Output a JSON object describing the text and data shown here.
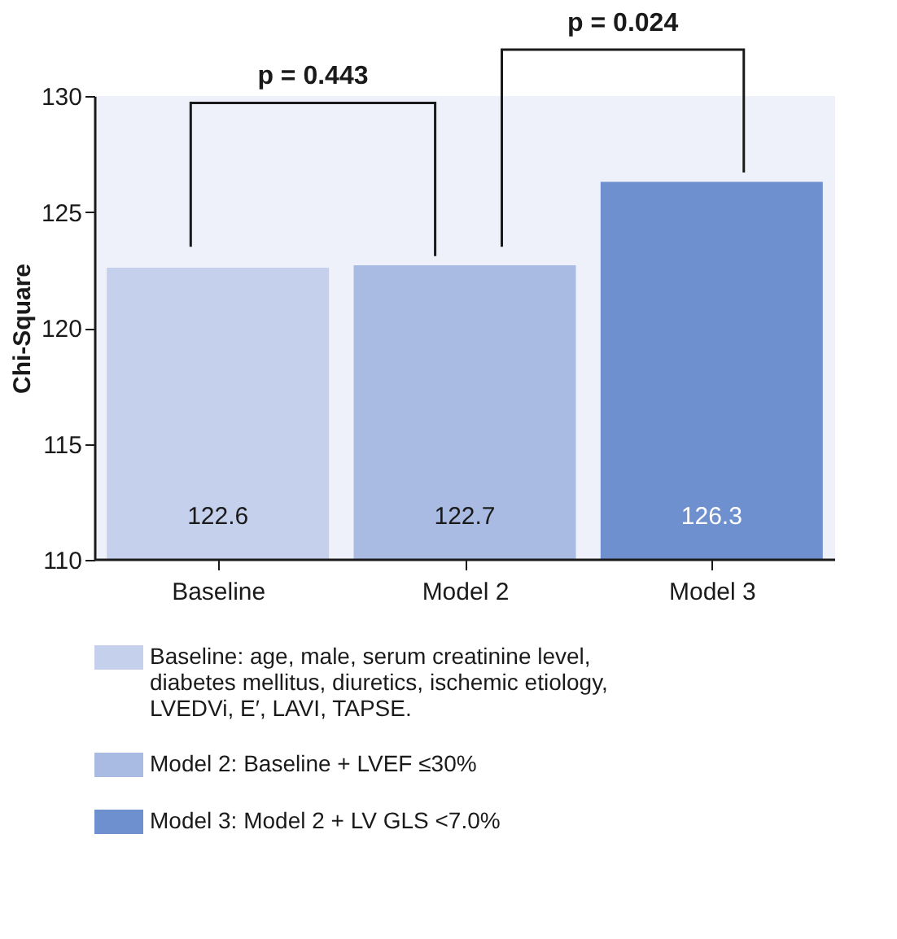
{
  "chart_data": {
    "type": "bar",
    "ylabel": "Chi-Square",
    "categories": [
      "Baseline",
      "Model 2",
      "Model 3"
    ],
    "series": [
      {
        "name": "Baseline: age, male, serum creatinine level, diabetes mellitus, diuretics, ischemic etiology, LVEDVi, E′, LAVI, TAPSE.",
        "color": "#c5d0ed",
        "values": [
          122.6,
          null,
          null
        ]
      },
      {
        "name": "Model 2: Baseline + LVEF ≤30%",
        "color": "#a9bae3",
        "values": [
          null,
          122.7,
          null
        ]
      },
      {
        "name": "Model 3: Model 2 + LV GLS <7.0%",
        "color": "#6f90cf",
        "values": [
          null,
          null,
          126.3
        ]
      }
    ],
    "ylim": [
      110,
      130
    ],
    "yticks": [
      110,
      115,
      120,
      125,
      130
    ],
    "data_labels": true,
    "grid": false,
    "legend": "bottom",
    "annotations": [
      "p = 0.443",
      "p = 0.024"
    ]
  }
}
